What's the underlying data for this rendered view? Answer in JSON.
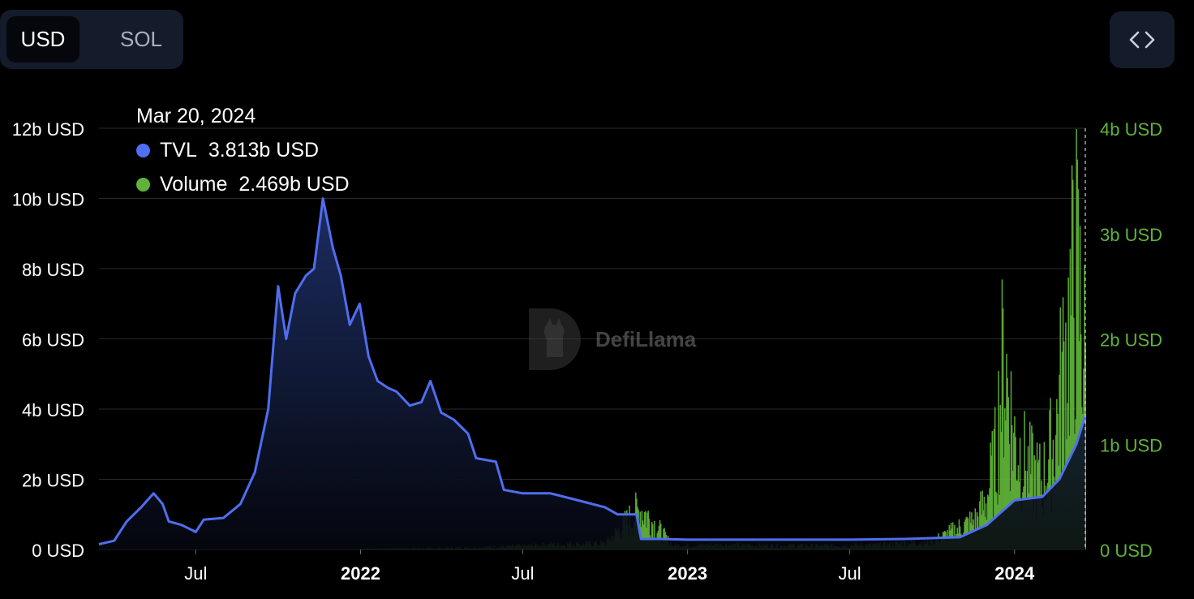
{
  "toggle": {
    "usd_label": "USD",
    "sol_label": "SOL"
  },
  "embed": {
    "icon": "code-icon"
  },
  "tooltip": {
    "date": "Mar 20, 2024",
    "tvl_label": "TVL",
    "tvl_value": "3.813b USD",
    "volume_label": "Volume",
    "volume_value": "2.469b USD"
  },
  "watermark": {
    "text": "DefiLlama",
    "icon": "llama-logo-icon"
  },
  "colors": {
    "tvl": "#4f6ef0",
    "volume": "#5fb33a",
    "right_axis": "#5fb33a",
    "grid": "#2a2a2a",
    "background": "#000000"
  },
  "chart_data": {
    "type": "line",
    "x_ticks": [
      {
        "date": "2021-07-01",
        "label": "Jul",
        "bold": false
      },
      {
        "date": "2022-01-01",
        "label": "2022",
        "bold": true
      },
      {
        "date": "2022-07-01",
        "label": "Jul",
        "bold": false
      },
      {
        "date": "2023-01-01",
        "label": "2023",
        "bold": true
      },
      {
        "date": "2023-07-01",
        "label": "Jul",
        "bold": false
      },
      {
        "date": "2024-01-01",
        "label": "2024",
        "bold": true
      }
    ],
    "x_range": [
      "2021-03-15",
      "2024-03-20"
    ],
    "left_axis": {
      "ylim": [
        0,
        12
      ],
      "ticks": [
        0,
        2,
        4,
        6,
        8,
        10,
        12
      ],
      "tick_labels": [
        "0 USD",
        "2b USD",
        "4b USD",
        "6b USD",
        "8b USD",
        "10b USD",
        "12b USD"
      ]
    },
    "right_axis": {
      "ylim": [
        0,
        4
      ],
      "ticks": [
        0,
        1,
        2,
        3,
        4
      ],
      "tick_labels": [
        "0 USD",
        "1b USD",
        "2b USD",
        "3b USD",
        "4b USD"
      ]
    },
    "grid": true,
    "series": [
      {
        "name": "TVL",
        "axis": "left",
        "style": "line-area",
        "points": [
          [
            "2021-03-15",
            0.15
          ],
          [
            "2021-04-01",
            0.25
          ],
          [
            "2021-04-15",
            0.8
          ],
          [
            "2021-05-01",
            1.2
          ],
          [
            "2021-05-15",
            1.6
          ],
          [
            "2021-05-25",
            1.3
          ],
          [
            "2021-06-01",
            0.8
          ],
          [
            "2021-06-15",
            0.7
          ],
          [
            "2021-07-01",
            0.5
          ],
          [
            "2021-07-10",
            0.85
          ],
          [
            "2021-08-01",
            0.9
          ],
          [
            "2021-08-20",
            1.3
          ],
          [
            "2021-09-05",
            2.2
          ],
          [
            "2021-09-20",
            4.0
          ],
          [
            "2021-10-01",
            7.5
          ],
          [
            "2021-10-10",
            6.0
          ],
          [
            "2021-10-20",
            7.3
          ],
          [
            "2021-11-01",
            7.8
          ],
          [
            "2021-11-10",
            8.0
          ],
          [
            "2021-11-20",
            10.0
          ],
          [
            "2021-12-01",
            8.6
          ],
          [
            "2021-12-10",
            7.8
          ],
          [
            "2021-12-20",
            6.4
          ],
          [
            "2021-12-31",
            7.0
          ],
          [
            "2022-01-10",
            5.5
          ],
          [
            "2022-01-20",
            4.8
          ],
          [
            "2022-02-01",
            4.6
          ],
          [
            "2022-02-10",
            4.5
          ],
          [
            "2022-02-25",
            4.1
          ],
          [
            "2022-03-10",
            4.2
          ],
          [
            "2022-03-20",
            4.8
          ],
          [
            "2022-04-01",
            3.9
          ],
          [
            "2022-04-15",
            3.7
          ],
          [
            "2022-05-01",
            3.3
          ],
          [
            "2022-05-10",
            2.6
          ],
          [
            "2022-06-01",
            2.5
          ],
          [
            "2022-06-10",
            1.7
          ],
          [
            "2022-07-01",
            1.6
          ],
          [
            "2022-08-01",
            1.6
          ],
          [
            "2022-09-01",
            1.4
          ],
          [
            "2022-10-01",
            1.2
          ],
          [
            "2022-10-15",
            1.0
          ],
          [
            "2022-11-05",
            1.0
          ],
          [
            "2022-11-10",
            0.3
          ],
          [
            "2022-12-01",
            0.3
          ],
          [
            "2023-01-01",
            0.28
          ],
          [
            "2023-03-01",
            0.28
          ],
          [
            "2023-05-01",
            0.28
          ],
          [
            "2023-07-01",
            0.28
          ],
          [
            "2023-09-01",
            0.3
          ],
          [
            "2023-11-01",
            0.35
          ],
          [
            "2023-12-01",
            0.7
          ],
          [
            "2024-01-01",
            1.4
          ],
          [
            "2024-02-01",
            1.5
          ],
          [
            "2024-02-20",
            2.0
          ],
          [
            "2024-03-10",
            3.0
          ],
          [
            "2024-03-20",
            3.813
          ]
        ]
      },
      {
        "name": "Volume",
        "axis": "right",
        "style": "bars",
        "points": [
          [
            "2022-01-01",
            0.01
          ],
          [
            "2022-04-01",
            0.02
          ],
          [
            "2022-06-01",
            0.03
          ],
          [
            "2022-08-01",
            0.06
          ],
          [
            "2022-10-01",
            0.08
          ],
          [
            "2022-11-10",
            0.55
          ],
          [
            "2022-12-15",
            0.05
          ],
          [
            "2023-02-01",
            0.06
          ],
          [
            "2023-04-01",
            0.05
          ],
          [
            "2023-06-01",
            0.05
          ],
          [
            "2023-08-01",
            0.06
          ],
          [
            "2023-10-01",
            0.1
          ],
          [
            "2023-11-20",
            0.4
          ],
          [
            "2023-12-01",
            0.7
          ],
          [
            "2023-12-10",
            1.2
          ],
          [
            "2023-12-20",
            2.6
          ],
          [
            "2023-12-31",
            1.5
          ],
          [
            "2024-01-15",
            1.1
          ],
          [
            "2024-02-01",
            0.9
          ],
          [
            "2024-02-15",
            1.5
          ],
          [
            "2024-02-28",
            2.8
          ],
          [
            "2024-03-10",
            3.7
          ],
          [
            "2024-03-20",
            2.469
          ]
        ]
      }
    ],
    "cursor_date": "2024-03-20"
  }
}
